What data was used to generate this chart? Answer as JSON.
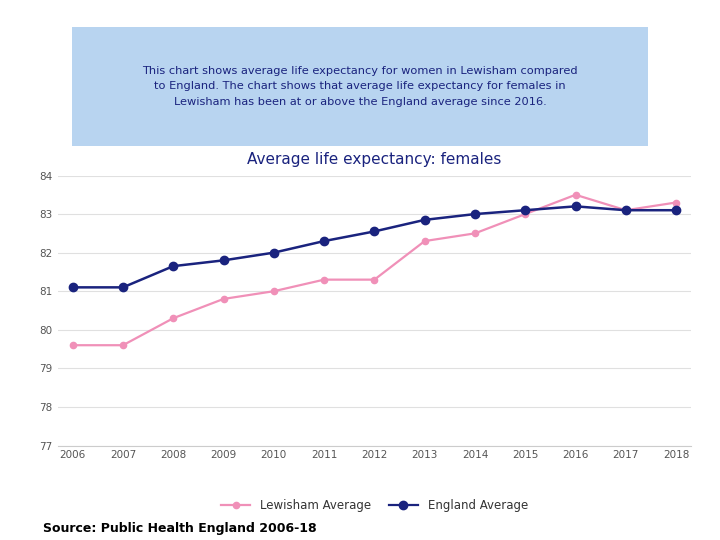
{
  "title": "Average life expectancy: females",
  "years": [
    2006,
    2007,
    2008,
    2009,
    2010,
    2011,
    2012,
    2013,
    2014,
    2015,
    2016,
    2017,
    2018
  ],
  "lewisham": [
    79.6,
    79.6,
    80.3,
    80.8,
    81.0,
    81.3,
    81.3,
    82.3,
    82.5,
    83.0,
    83.5,
    83.1,
    83.3
  ],
  "england": [
    81.1,
    81.1,
    81.65,
    81.8,
    82.0,
    82.3,
    82.55,
    82.85,
    83.0,
    83.1,
    83.2,
    83.1,
    83.1
  ],
  "lewisham_color": "#f090b8",
  "england_color": "#1a237e",
  "ylim_min": 77,
  "ylim_max": 84,
  "yticks": [
    77,
    78,
    79,
    80,
    81,
    82,
    83,
    84
  ],
  "background_color": "#ffffff",
  "text_box_color": "#b8d4f0",
  "text_box_text": "This chart shows average life expectancy for women in Lewisham compared\nto England. The chart shows that average life expectancy for females in\nLewisham has been at or above the England average since 2016.",
  "text_box_text_color": "#1a237e",
  "title_color": "#1a237e",
  "source_text": "Source: Public Health England 2006-18",
  "legend_lewisham": "Lewisham Average",
  "legend_england": "England Average"
}
